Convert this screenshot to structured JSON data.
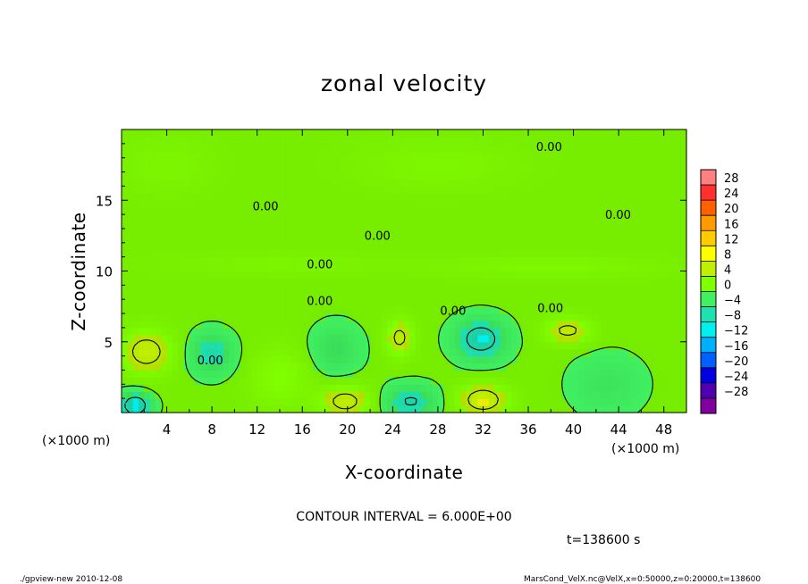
{
  "chart_data": {
    "type": "heatmap",
    "title": "zonal velocity",
    "xlabel": "X-coordinate",
    "ylabel": "Z-coordinate",
    "x_unit": "(×1000 m)",
    "y_unit": "(×1000 m)",
    "xlim": [
      0,
      50
    ],
    "ylim": [
      0,
      20
    ],
    "x_ticks": [
      4,
      8,
      12,
      16,
      20,
      24,
      28,
      32,
      36,
      40,
      44,
      48
    ],
    "y_ticks": [
      5,
      10,
      15
    ],
    "contour_interval_text": "CONTOUR INTERVAL = 6.000E+00",
    "contour_label": "0.00",
    "time_text": "t=138600 s",
    "colorbar": {
      "levels": [
        28,
        24,
        20,
        16,
        12,
        8,
        4,
        0,
        -4,
        -8,
        -12,
        -16,
        -20,
        -24,
        -28
      ],
      "labels": [
        "28",
        "24",
        "20",
        "16",
        "12",
        "8",
        "4",
        "0",
        "−4",
        "−8",
        "−12",
        "−16",
        "−20",
        "−24",
        "−28"
      ],
      "colors": [
        "#ff8080",
        "#ff3030",
        "#ff6000",
        "#ff9a00",
        "#ffcc00",
        "#ffff00",
        "#c0f000",
        "#80ff00",
        "#40f060",
        "#20e0b0",
        "#00f0f0",
        "#00b0ff",
        "#0060ff",
        "#0000e0",
        "#5000b0",
        "#8000a0"
      ]
    },
    "field": {
      "background": 0.5,
      "blobs": [
        {
          "x": 2.2,
          "z": 4.3,
          "v": 7.5,
          "sx": 2.2,
          "sz": 1.5
        },
        {
          "x": 8.0,
          "z": 4.2,
          "v": -6.5,
          "sx": 1.8,
          "sz": 1.4
        },
        {
          "x": 19.8,
          "z": 0.8,
          "v": 7.0,
          "sx": 2.2,
          "sz": 1.1
        },
        {
          "x": 25.6,
          "z": 0.8,
          "v": -7.0,
          "sx": 2.2,
          "sz": 1.1
        },
        {
          "x": 32.0,
          "z": 0.9,
          "v": 8.0,
          "sx": 2.2,
          "sz": 1.1
        },
        {
          "x": 1.2,
          "z": 0.5,
          "v": -10.0,
          "sx": 1.4,
          "sz": 0.9
        },
        {
          "x": 24.6,
          "z": 5.3,
          "v": 6.5,
          "sx": 1.2,
          "sz": 1.3
        },
        {
          "x": 31.8,
          "z": 5.2,
          "v": -9.0,
          "sx": 2.2,
          "sz": 1.4
        },
        {
          "x": 39.5,
          "z": 5.8,
          "v": 6.5,
          "sx": 2.0,
          "sz": 0.9
        },
        {
          "x": 19.0,
          "z": 4.5,
          "v": -4.5,
          "sx": 2.0,
          "sz": 1.6
        },
        {
          "x": 14.0,
          "z": 2.5,
          "v": 3.5,
          "sx": 2.5,
          "sz": 2.0
        },
        {
          "x": 43.0,
          "z": 2.0,
          "v": -3.0,
          "sx": 3.0,
          "sz": 2.0
        },
        {
          "x": 4.0,
          "z": 17.5,
          "v": 1.8,
          "sx": 4.0,
          "sz": 2.0
        },
        {
          "x": 28.0,
          "z": 17.5,
          "v": 2.0,
          "sx": 7.0,
          "sz": 1.8
        },
        {
          "x": 38.0,
          "z": 10.3,
          "v": 2.2,
          "sx": 10.0,
          "sz": 0.8
        },
        {
          "x": 14.0,
          "z": 10.5,
          "v": 1.6,
          "sx": 10.0,
          "sz": 0.8
        }
      ]
    }
  },
  "footer": {
    "left": "./gpview-new  2010-12-08",
    "right": "MarsCond_VelX.nc@VelX,x=0:50000,z=0:20000,t=138600"
  }
}
